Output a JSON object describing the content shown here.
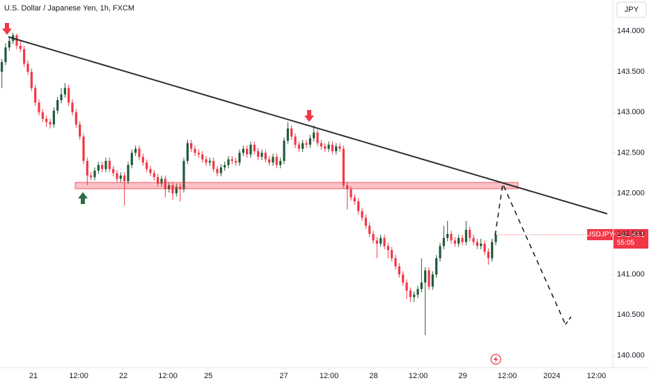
{
  "chart_data": {
    "type": "candlestick",
    "title": "U.S. Dollar / Japanese Yen, 1h, FXCM",
    "currency": "JPY",
    "symbol": "USDJPY",
    "last_price": 141.491,
    "countdown": "55:05",
    "up_color": "#1f5a3a",
    "down_color": "#f23645",
    "xlim": [
      0,
      165
    ],
    "ylim": [
      139.85,
      144.385
    ],
    "yticks": [
      {
        "value": 140,
        "label": "140.000"
      },
      {
        "value": 140.5,
        "label": "140.500"
      },
      {
        "value": 141,
        "label": "141.000"
      },
      {
        "value": 141.5,
        "label": "141.500"
      },
      {
        "value": 142,
        "label": "142.000"
      },
      {
        "value": 142.5,
        "label": "142.500"
      },
      {
        "value": 143,
        "label": "143.000"
      },
      {
        "value": 143.5,
        "label": "143.500"
      },
      {
        "value": 144,
        "label": "144.000"
      }
    ],
    "xticks": [
      {
        "value": 9,
        "label": "21"
      },
      {
        "value": 21.2,
        "label": "12:00"
      },
      {
        "value": 33.2,
        "label": "22"
      },
      {
        "value": 45.2,
        "label": "12:00"
      },
      {
        "value": 56.1,
        "label": "25"
      },
      {
        "value": 76.4,
        "label": "27"
      },
      {
        "value": 88.6,
        "label": "12:00"
      },
      {
        "value": 100.6,
        "label": "28"
      },
      {
        "value": 112.6,
        "label": "12:00"
      },
      {
        "value": 124.6,
        "label": "29"
      },
      {
        "value": 136.6,
        "label": "12:00"
      },
      {
        "value": 148.6,
        "label": "2024"
      },
      {
        "value": 160.6,
        "label": "12:00"
      }
    ],
    "candles": [
      [
        143.5,
        143.66,
        143.3,
        143.62
      ],
      [
        143.62,
        143.85,
        143.58,
        143.8
      ],
      [
        143.8,
        143.92,
        143.76,
        143.88
      ],
      [
        143.88,
        143.98,
        143.84,
        143.95
      ],
      [
        143.95,
        143.97,
        143.78,
        143.82
      ],
      [
        143.82,
        143.88,
        143.74,
        143.78
      ],
      [
        143.78,
        143.82,
        143.56,
        143.6
      ],
      [
        143.6,
        143.64,
        143.46,
        143.5
      ],
      [
        143.5,
        143.54,
        143.26,
        143.3
      ],
      [
        143.3,
        143.34,
        143.08,
        143.12
      ],
      [
        143.12,
        143.16,
        142.96,
        143.0
      ],
      [
        143.0,
        143.04,
        142.88,
        142.92
      ],
      [
        142.92,
        142.96,
        142.82,
        142.88
      ],
      [
        142.88,
        142.92,
        142.8,
        142.85
      ],
      [
        142.85,
        143.06,
        142.81,
        143.02
      ],
      [
        143.02,
        143.19,
        142.98,
        143.15
      ],
      [
        143.15,
        143.3,
        143.11,
        143.22
      ],
      [
        143.22,
        143.36,
        143.18,
        143.3
      ],
      [
        143.3,
        143.34,
        143.08,
        143.12
      ],
      [
        143.12,
        143.16,
        142.96,
        143.0
      ],
      [
        143.0,
        143.04,
        142.81,
        142.85
      ],
      [
        142.85,
        142.89,
        142.66,
        142.7
      ],
      [
        142.7,
        142.74,
        142.36,
        142.4
      ],
      [
        142.4,
        142.44,
        142.1,
        142.22
      ],
      [
        142.22,
        142.26,
        142.16,
        142.2
      ],
      [
        142.2,
        142.32,
        142.16,
        142.28
      ],
      [
        142.28,
        142.39,
        142.24,
        142.35
      ],
      [
        142.35,
        142.39,
        142.26,
        142.3
      ],
      [
        142.3,
        142.44,
        142.26,
        142.4
      ],
      [
        142.4,
        142.44,
        142.26,
        142.3
      ],
      [
        142.3,
        142.34,
        142.21,
        142.25
      ],
      [
        142.25,
        142.29,
        142.14,
        142.18
      ],
      [
        142.18,
        142.26,
        142.14,
        142.22
      ],
      [
        142.22,
        142.26,
        141.85,
        142.15
      ],
      [
        142.15,
        142.39,
        142.11,
        142.35
      ],
      [
        142.35,
        142.54,
        142.31,
        142.5
      ],
      [
        142.5,
        142.59,
        142.46,
        142.55
      ],
      [
        142.55,
        142.59,
        142.41,
        142.45
      ],
      [
        142.45,
        142.49,
        142.34,
        142.38
      ],
      [
        142.38,
        142.42,
        142.26,
        142.3
      ],
      [
        142.3,
        142.34,
        142.21,
        142.25
      ],
      [
        142.25,
        142.29,
        142.16,
        142.2
      ],
      [
        142.2,
        142.24,
        142.08,
        142.12
      ],
      [
        142.12,
        142.22,
        142.08,
        142.18
      ],
      [
        142.18,
        142.22,
        141.95,
        142.05
      ],
      [
        142.05,
        142.14,
        142.01,
        142.1
      ],
      [
        142.1,
        142.14,
        141.92,
        142.0
      ],
      [
        142.0,
        142.12,
        141.96,
        142.08
      ],
      [
        142.08,
        142.12,
        141.9,
        142.05
      ],
      [
        142.05,
        142.44,
        142.01,
        142.4
      ],
      [
        142.4,
        142.66,
        142.36,
        142.62
      ],
      [
        142.62,
        142.66,
        142.51,
        142.55
      ],
      [
        142.55,
        142.59,
        142.46,
        142.5
      ],
      [
        142.5,
        142.54,
        142.44,
        142.48
      ],
      [
        142.48,
        142.52,
        142.38,
        142.42
      ],
      [
        142.42,
        142.46,
        142.34,
        142.38
      ],
      [
        142.38,
        142.44,
        142.34,
        142.4
      ],
      [
        142.4,
        142.44,
        142.26,
        142.3
      ],
      [
        142.3,
        142.34,
        142.21,
        142.25
      ],
      [
        142.25,
        142.36,
        142.21,
        142.32
      ],
      [
        142.32,
        142.39,
        142.28,
        142.35
      ],
      [
        142.35,
        142.46,
        142.31,
        142.42
      ],
      [
        142.42,
        142.46,
        142.36,
        142.4
      ],
      [
        142.4,
        142.44,
        142.34,
        142.38
      ],
      [
        142.38,
        142.54,
        142.34,
        142.5
      ],
      [
        142.5,
        142.59,
        142.46,
        142.55
      ],
      [
        142.55,
        142.59,
        142.44,
        142.48
      ],
      [
        142.48,
        142.64,
        142.44,
        142.6
      ],
      [
        142.6,
        142.64,
        142.48,
        142.52
      ],
      [
        142.52,
        142.56,
        142.41,
        142.45
      ],
      [
        142.45,
        142.54,
        142.41,
        142.5
      ],
      [
        142.5,
        142.54,
        142.38,
        142.42
      ],
      [
        142.42,
        142.46,
        142.34,
        142.38
      ],
      [
        142.38,
        142.49,
        142.34,
        142.45
      ],
      [
        142.45,
        142.49,
        142.31,
        142.35
      ],
      [
        142.35,
        142.44,
        142.31,
        142.4
      ],
      [
        142.4,
        142.69,
        142.36,
        142.65
      ],
      [
        142.65,
        142.88,
        142.61,
        142.8
      ],
      [
        142.8,
        142.84,
        142.66,
        142.7
      ],
      [
        142.7,
        142.74,
        142.56,
        142.6
      ],
      [
        142.6,
        142.64,
        142.51,
        142.55
      ],
      [
        142.55,
        142.66,
        142.51,
        142.62
      ],
      [
        142.62,
        142.66,
        142.56,
        142.6
      ],
      [
        142.6,
        142.72,
        142.56,
        142.68
      ],
      [
        142.68,
        142.84,
        142.64,
        142.75
      ],
      [
        142.75,
        142.79,
        142.58,
        142.62
      ],
      [
        142.62,
        142.66,
        142.54,
        142.58
      ],
      [
        142.58,
        142.62,
        142.51,
        142.55
      ],
      [
        142.55,
        142.64,
        142.51,
        142.6
      ],
      [
        142.6,
        142.64,
        142.48,
        142.52
      ],
      [
        142.52,
        142.62,
        142.48,
        142.58
      ],
      [
        142.58,
        142.62,
        142.51,
        142.55
      ],
      [
        142.55,
        142.59,
        142.06,
        142.1
      ],
      [
        142.1,
        142.14,
        141.8,
        142.05
      ],
      [
        142.05,
        142.09,
        141.91,
        141.95
      ],
      [
        141.95,
        141.99,
        141.86,
        141.9
      ],
      [
        141.9,
        141.94,
        141.74,
        141.78
      ],
      [
        141.78,
        141.82,
        141.66,
        141.7
      ],
      [
        141.7,
        141.74,
        141.56,
        141.6
      ],
      [
        141.6,
        141.64,
        141.46,
        141.5
      ],
      [
        141.5,
        141.54,
        141.38,
        141.42
      ],
      [
        141.42,
        141.46,
        141.2,
        141.38
      ],
      [
        141.38,
        141.49,
        141.34,
        141.45
      ],
      [
        141.45,
        141.49,
        141.31,
        141.35
      ],
      [
        141.35,
        141.39,
        141.2,
        141.3
      ],
      [
        141.3,
        141.34,
        141.16,
        141.2
      ],
      [
        141.2,
        141.24,
        141.06,
        141.1
      ],
      [
        141.1,
        141.14,
        140.96,
        141.0
      ],
      [
        141.0,
        141.04,
        140.86,
        140.9
      ],
      [
        140.9,
        140.94,
        140.7,
        140.8
      ],
      [
        140.8,
        140.84,
        140.66,
        140.72
      ],
      [
        140.72,
        140.79,
        140.66,
        140.75
      ],
      [
        140.75,
        140.86,
        140.71,
        140.82
      ],
      [
        140.82,
        141.2,
        140.78,
        140.9
      ],
      [
        140.9,
        141.09,
        140.25,
        141.05
      ],
      [
        141.05,
        141.09,
        140.81,
        140.85
      ],
      [
        140.85,
        141.04,
        140.81,
        141.0
      ],
      [
        141.0,
        141.24,
        140.96,
        141.2
      ],
      [
        141.2,
        141.39,
        141.16,
        141.35
      ],
      [
        141.35,
        141.6,
        141.31,
        141.45
      ],
      [
        141.45,
        141.66,
        141.41,
        141.5
      ],
      [
        141.5,
        141.54,
        141.38,
        141.42
      ],
      [
        141.42,
        141.46,
        141.34,
        141.38
      ],
      [
        141.38,
        141.49,
        141.34,
        141.45
      ],
      [
        141.45,
        141.49,
        141.36,
        141.4
      ],
      [
        141.4,
        141.66,
        141.36,
        141.55
      ],
      [
        141.55,
        141.59,
        141.41,
        141.45
      ],
      [
        141.45,
        141.49,
        141.36,
        141.4
      ],
      [
        141.4,
        141.44,
        141.31,
        141.35
      ],
      [
        141.35,
        141.44,
        141.31,
        141.38
      ],
      [
        141.38,
        141.42,
        141.24,
        141.28
      ],
      [
        141.28,
        141.32,
        141.12,
        141.2
      ],
      [
        141.2,
        141.44,
        141.16,
        141.4
      ],
      [
        141.4,
        141.53,
        141.36,
        141.49
      ]
    ]
  }
}
